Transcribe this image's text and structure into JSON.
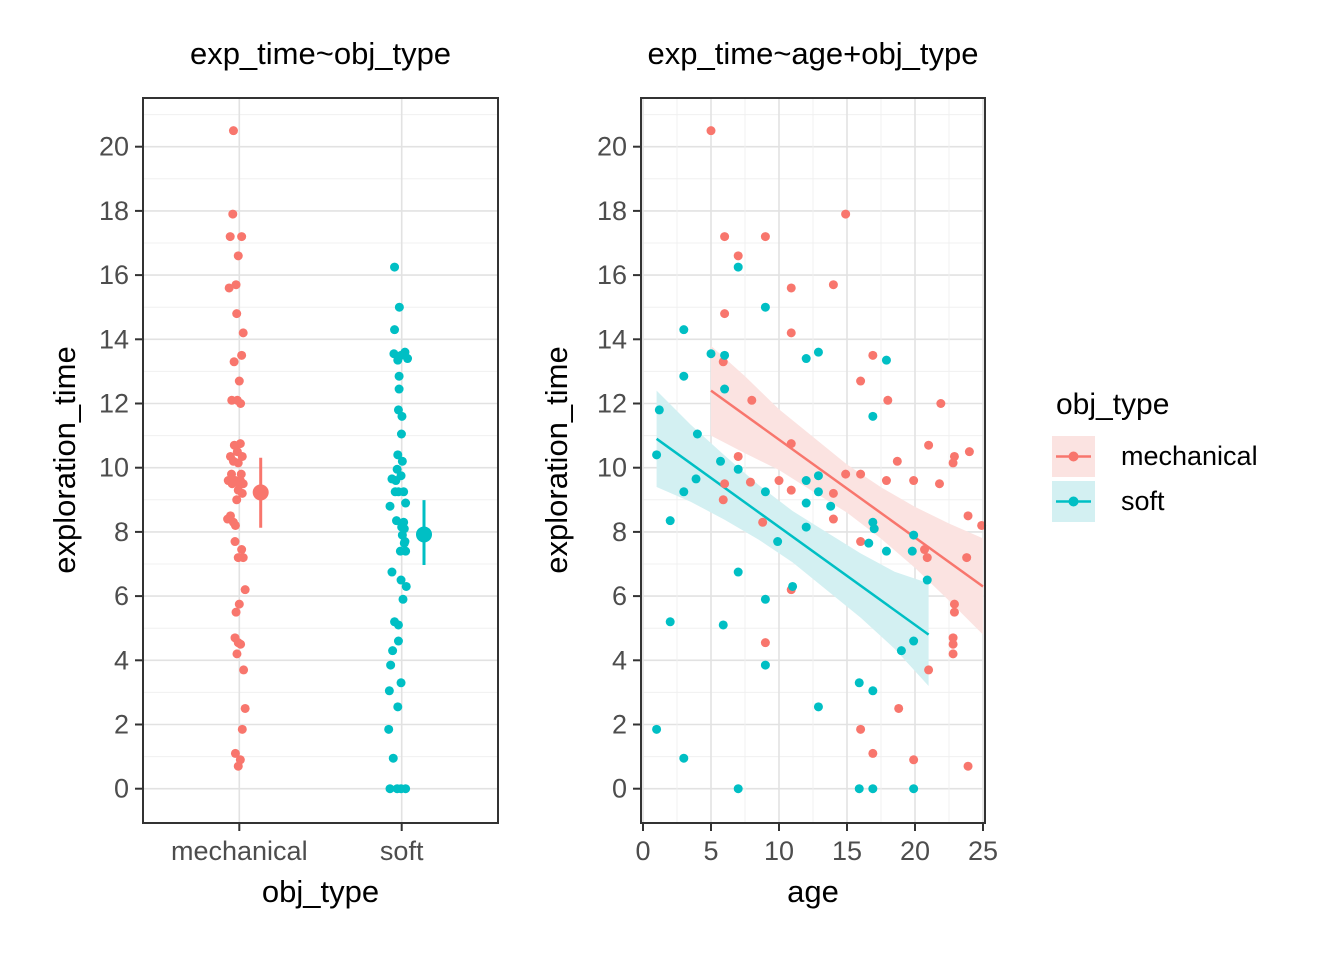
{
  "titles": {
    "left": "exp_time~obj_type",
    "right": "exp_time~age+obj_type"
  },
  "axis_titles": {
    "left_x": "obj_type",
    "left_y": "exploration_time",
    "right_x": "age",
    "right_y": "exploration_time"
  },
  "legend": {
    "title": "obj_type",
    "entries": [
      {
        "label": "mechanical",
        "color": "#F8766D",
        "ribbon": "#FBE3E1"
      },
      {
        "label": "soft",
        "color": "#00BFC4",
        "ribbon": "#D3F0F2"
      }
    ]
  },
  "colors": {
    "mechanical": "#F8766D",
    "soft": "#00BFC4",
    "mechanical_ribbon": "#FBE3E1",
    "soft_ribbon": "#D3F0F2",
    "grid_major": "#E2E2E2",
    "grid_minor": "#F0F0F0",
    "axis_text": "#4D4D4D",
    "panel_border": "#333333"
  },
  "chart_data": [
    {
      "type": "scatter",
      "title": "exp_time~obj_type",
      "xlabel": "obj_type",
      "ylabel": "exploration_time",
      "categories": [
        "mechanical",
        "soft"
      ],
      "y_ticks": [
        0,
        2,
        4,
        6,
        8,
        10,
        12,
        14,
        16,
        18,
        20
      ],
      "ylim": [
        -1.0,
        21.6
      ],
      "grid": true,
      "jitter": "points are the exp_time values of panel 2, horizontally jittered within category",
      "summary_pointrange": [
        {
          "group": "mechanical",
          "mean": 9.23,
          "ci_low": 8.13,
          "ci_high": 10.31
        },
        {
          "group": "soft",
          "mean": 7.92,
          "ci_low": 6.97,
          "ci_high": 8.99
        }
      ]
    },
    {
      "type": "scatter",
      "title": "exp_time~age+obj_type",
      "xlabel": "age",
      "ylabel": "exploration_time",
      "x_ticks": [
        0,
        5,
        10,
        15,
        20,
        25
      ],
      "y_ticks": [
        0,
        2,
        4,
        6,
        8,
        10,
        12,
        14,
        16,
        18,
        20
      ],
      "xlim": [
        -0.2,
        25.2
      ],
      "ylim": [
        -1.0,
        21.6
      ],
      "legend_position": "right",
      "series": [
        {
          "name": "mechanical",
          "points": [
            [
              5,
              20.5,
              -0.45
            ],
            [
              14.9,
              17.9,
              -0.5
            ],
            [
              6,
              17.2,
              -0.7
            ],
            [
              9,
              17.2,
              0.18
            ],
            [
              7,
              16.6,
              -0.08
            ],
            [
              14,
              15.7,
              -0.25
            ],
            [
              10.9,
              15.6,
              -0.78
            ],
            [
              6,
              14.8,
              -0.2
            ],
            [
              10.9,
              14.2,
              0.3
            ],
            [
              16.9,
              13.5,
              0.18
            ],
            [
              5.9,
              13.3,
              -0.4
            ],
            [
              16,
              12.7,
              0
            ],
            [
              8,
              12.1,
              -0.58
            ],
            [
              18,
              12.1,
              -0.15
            ],
            [
              21.9,
              12,
              0.1
            ],
            [
              10.9,
              10.75,
              0.08
            ],
            [
              21,
              10.7,
              -0.38
            ],
            [
              24,
              10.5,
              -0.15
            ],
            [
              7,
              10.35,
              -0.68
            ],
            [
              22.9,
              10.35,
              0.23
            ],
            [
              18.7,
              10.2,
              -0.45
            ],
            [
              22.8,
              10.15,
              -0.08
            ],
            [
              14.9,
              9.8,
              -0.6
            ],
            [
              16,
              9.8,
              0.15
            ],
            [
              10,
              9.6,
              -0.3
            ],
            [
              17.9,
              9.6,
              0.08
            ],
            [
              19.9,
              9.6,
              -0.85
            ],
            [
              7.9,
              9.55,
              -0.15
            ],
            [
              6,
              9.5,
              0.3
            ],
            [
              21.8,
              9.5,
              -0.55
            ],
            [
              10.9,
              9.3,
              -0.08
            ],
            [
              14,
              9.2,
              0.23
            ],
            [
              5.9,
              9,
              -0.2
            ],
            [
              8.8,
              8.3,
              -0.45
            ],
            [
              14,
              8.4,
              -0.9
            ],
            [
              23.9,
              8.5,
              -0.68
            ],
            [
              24.9,
              8.2,
              -0.3
            ],
            [
              16,
              7.7,
              -0.33
            ],
            [
              20.7,
              7.45,
              0.18
            ],
            [
              20.9,
              7.2,
              -0.08
            ],
            [
              23.8,
              7.2,
              0.3
            ],
            [
              10.9,
              6.2,
              0.45
            ],
            [
              22.9,
              5.75,
              0
            ],
            [
              22.9,
              5.5,
              -0.25
            ],
            [
              9,
              4.55,
              -0.08
            ],
            [
              22.8,
              4.7,
              -0.33
            ],
            [
              22.8,
              4.5,
              0.1
            ],
            [
              22.8,
              4.2,
              -0.18
            ],
            [
              21,
              3.7,
              0.33
            ],
            [
              18.8,
              2.5,
              0.45
            ],
            [
              16,
              1.85,
              0.23
            ],
            [
              16.9,
              1.1,
              -0.3
            ],
            [
              19.9,
              0.9,
              0.08
            ],
            [
              23.9,
              0.7,
              -0.08
            ]
          ],
          "regression": {
            "x1": 5,
            "y1": 12.4,
            "x2": 25,
            "y2": 6.3
          },
          "ribbon": [
            [
              5,
              11.0,
              13.8
            ],
            [
              7.5,
              10.45,
              12.85
            ],
            [
              10,
              9.93,
              11.82
            ],
            [
              12.5,
              9.26,
              10.96
            ],
            [
              15,
              8.6,
              10.1
            ],
            [
              17.5,
              7.79,
              9.39
            ],
            [
              20,
              6.88,
              8.78
            ],
            [
              22.5,
              5.86,
              8.26
            ],
            [
              25,
              4.8,
              7.8
            ]
          ]
        },
        {
          "name": "soft",
          "points": [
            [
              7,
              16.25,
              -0.55
            ],
            [
              9,
              15,
              -0.18
            ],
            [
              3,
              14.3,
              -0.55
            ],
            [
              5,
              13.55,
              -0.6
            ],
            [
              6,
              13.5,
              -0.05
            ],
            [
              12.9,
              13.6,
              0.25
            ],
            [
              12,
              13.4,
              0.45
            ],
            [
              17.9,
              13.35,
              -0.3
            ],
            [
              3,
              12.85,
              -0.2
            ],
            [
              6,
              12.45,
              -0.2
            ],
            [
              1.2,
              11.8,
              -0.25
            ],
            [
              16.9,
              11.6,
              0.02
            ],
            [
              4,
              11.05,
              -0.02
            ],
            [
              1,
              10.4,
              -0.3
            ],
            [
              5.7,
              10.2,
              0.05
            ],
            [
              7,
              9.95,
              -0.35
            ],
            [
              3.9,
              9.65,
              -0.75
            ],
            [
              12.9,
              9.75,
              -0.05
            ],
            [
              12,
              9.6,
              -0.45
            ],
            [
              3,
              9.25,
              0.15
            ],
            [
              9,
              9.25,
              -0.5
            ],
            [
              12.9,
              9.25,
              -0.25
            ],
            [
              13.8,
              8.8,
              -0.9
            ],
            [
              12,
              8.9,
              0.3
            ],
            [
              2,
              8.35,
              -0.4
            ],
            [
              16.9,
              8.3,
              0.15
            ],
            [
              17,
              8.1,
              0.2
            ],
            [
              12,
              8.15,
              0
            ],
            [
              9.9,
              7.7,
              0.25
            ],
            [
              16.6,
              7.65,
              0.2
            ],
            [
              19.9,
              7.9,
              0.05
            ],
            [
              17.9,
              7.4,
              -0.1
            ],
            [
              19.8,
              7.4,
              0.3
            ],
            [
              7,
              6.75,
              -0.75
            ],
            [
              11,
              6.3,
              0.35
            ],
            [
              9,
              5.9,
              0.1
            ],
            [
              20.9,
              6.5,
              -0.05
            ],
            [
              2,
              5.2,
              -0.55
            ],
            [
              5.9,
              5.1,
              -0.25
            ],
            [
              19.9,
              4.6,
              -0.25
            ],
            [
              19,
              4.3,
              -0.7
            ],
            [
              9,
              3.85,
              -0.85
            ],
            [
              15.9,
              3.3,
              -0.05
            ],
            [
              16.9,
              3.05,
              -0.95
            ],
            [
              12.9,
              2.55,
              -0.3
            ],
            [
              1,
              1.85,
              -1
            ],
            [
              3,
              0.95,
              -0.65
            ],
            [
              7,
              0,
              -0.9
            ],
            [
              15.9,
              0,
              -0.35
            ],
            [
              16.9,
              0,
              0.3
            ],
            [
              19.9,
              0,
              -0.05
            ]
          ],
          "regression": {
            "x1": 1,
            "y1": 10.9,
            "x2": 21,
            "y2": 4.8
          },
          "ribbon": [
            [
              1,
              9.4,
              12.4
            ],
            [
              3.5,
              8.94,
              11.34
            ],
            [
              6,
              8.38,
              10.38
            ],
            [
              8.5,
              7.76,
              9.46
            ],
            [
              11,
              7.05,
              8.65
            ],
            [
              13.5,
              6.19,
              7.99
            ],
            [
              16,
              5.33,
              7.33
            ],
            [
              18.5,
              4.36,
              6.76
            ],
            [
              21,
              3.2,
              6.4
            ]
          ]
        }
      ]
    }
  ]
}
